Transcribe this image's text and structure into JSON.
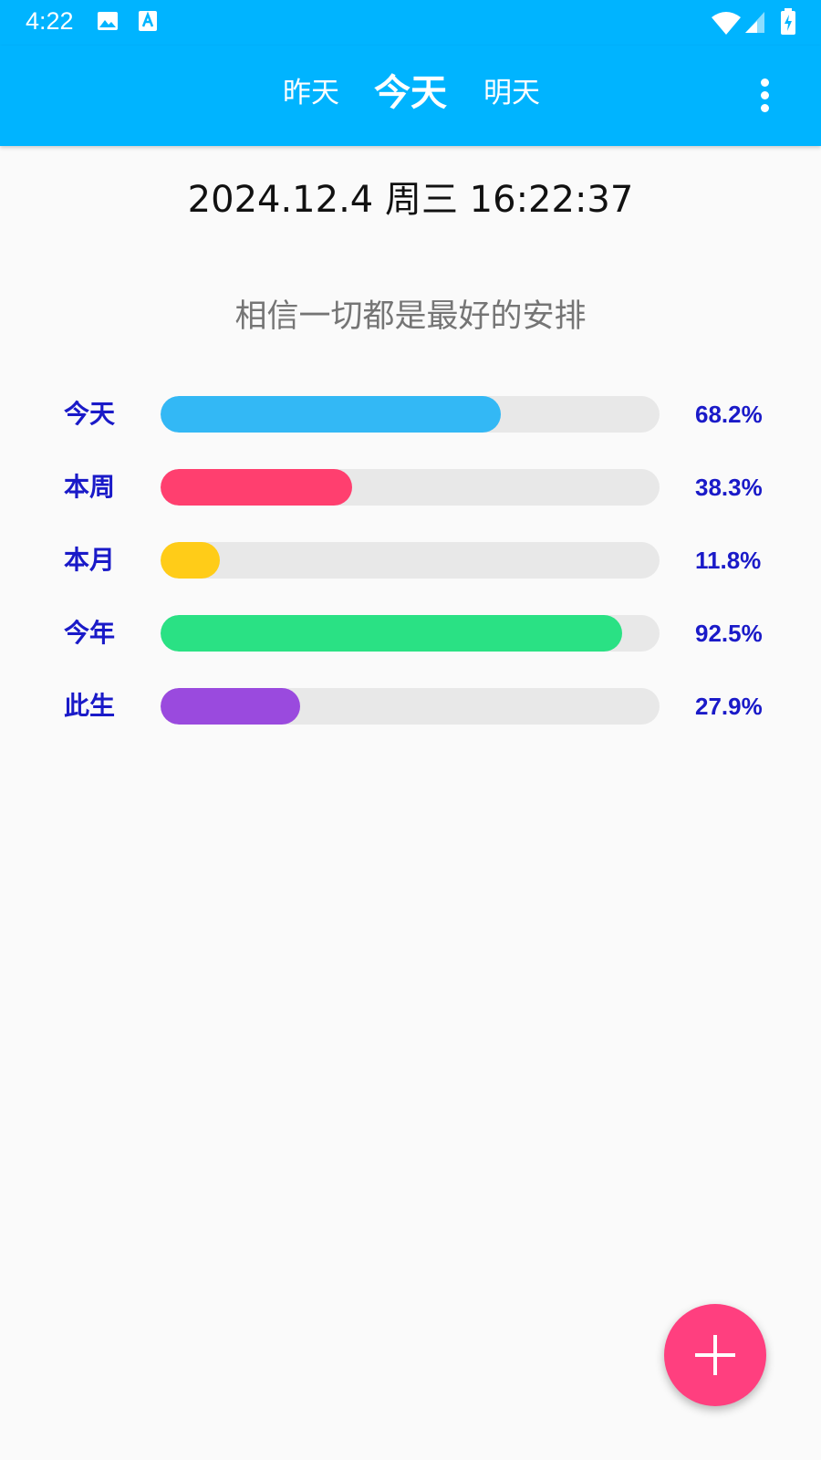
{
  "status_bar": {
    "time": "4:22",
    "icons": [
      "image-icon",
      "font-icon",
      "wifi-icon",
      "signal-icon",
      "battery-charging-icon"
    ]
  },
  "app_bar": {
    "tabs": [
      {
        "label": "昨天"
      },
      {
        "label": "今天",
        "selected": true
      },
      {
        "label": "明天"
      }
    ],
    "menu_icon": "more-vert-icon",
    "color": "#00b4ff"
  },
  "datetime": "2024.12.4 周三 16:22:37",
  "motto": "相信一切都是最好的安排",
  "progress": [
    {
      "label": "今天",
      "percent_text": "68.2%",
      "value": 68.2,
      "color": "#33b8f5"
    },
    {
      "label": "本周",
      "percent_text": "38.3%",
      "value": 38.3,
      "color": "#ff3f6f"
    },
    {
      "label": "本月",
      "percent_text": "11.8%",
      "value": 11.8,
      "color": "#ffcc18"
    },
    {
      "label": "今年",
      "percent_text": "92.5%",
      "value": 92.5,
      "color": "#2ae184"
    },
    {
      "label": "此生",
      "percent_text": "27.9%",
      "value": 27.9,
      "color": "#9a4ade"
    }
  ],
  "fab": {
    "icon": "plus-icon",
    "color": "#ff3f7f"
  }
}
